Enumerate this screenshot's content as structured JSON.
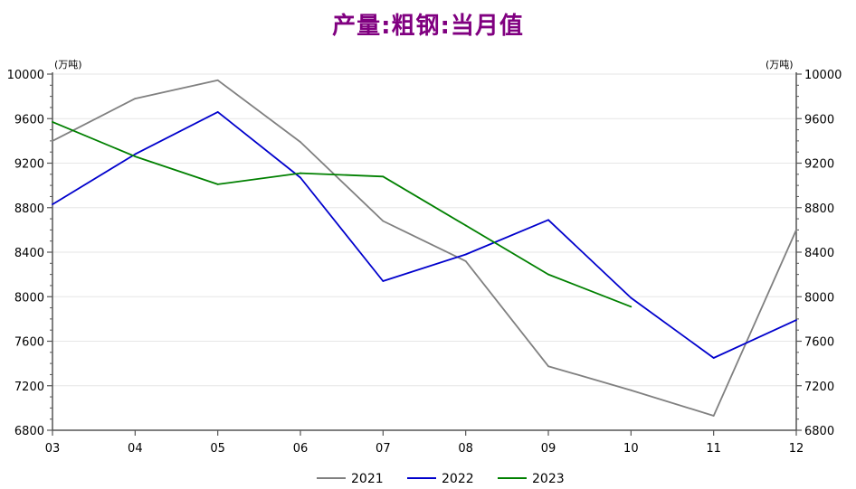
{
  "chart_data": {
    "type": "line",
    "title": "产量:粗钢:当月值",
    "unit_left": "(万吨)",
    "unit_right": "(万吨)",
    "x": [
      "03",
      "04",
      "05",
      "06",
      "07",
      "08",
      "09",
      "10",
      "11",
      "12"
    ],
    "ylim": [
      6800,
      10000
    ],
    "yticks": [
      6800,
      7200,
      7600,
      8000,
      8400,
      8800,
      9200,
      9600,
      10000
    ],
    "grid": true,
    "legend_position": "bottom",
    "series": [
      {
        "name": "2021",
        "color": "#808080",
        "values": [
          9400,
          9780,
          9945,
          9390,
          8680,
          8320,
          7375,
          7160,
          6930,
          8600
        ]
      },
      {
        "name": "2022",
        "color": "#0000cc",
        "values": [
          8830,
          9280,
          9660,
          9070,
          8140,
          8380,
          8690,
          7990,
          7450,
          7790
        ]
      },
      {
        "name": "2023",
        "color": "#008000",
        "values": [
          9570,
          9260,
          9010,
          9110,
          9080,
          8640,
          8200,
          7910,
          null,
          null
        ]
      }
    ]
  }
}
